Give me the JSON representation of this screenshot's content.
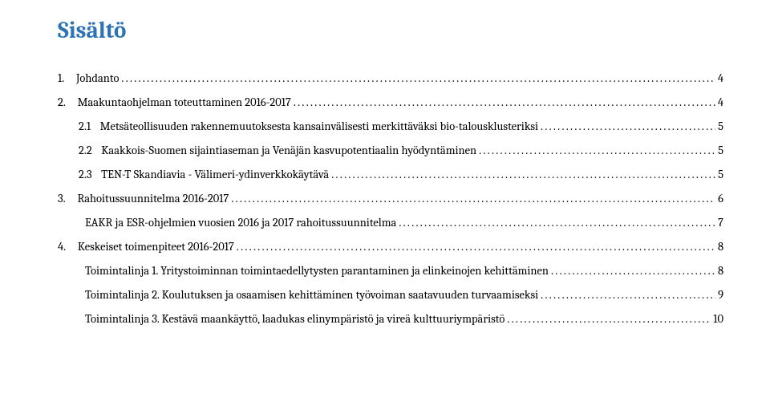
{
  "title": {
    "text": "Sisältö",
    "color": "#2e74b5",
    "fontsize": 29
  },
  "toc": [
    {
      "indent": "indent-0",
      "num": "1.",
      "numpad": "    ",
      "label": "Johdanto",
      "page": "4"
    },
    {
      "indent": "indent-0",
      "num": "2.",
      "numpad": "    ",
      "label": "Maakuntaohjelman toteuttaminen 2016-2017",
      "page": "4"
    },
    {
      "indent": "indent-1",
      "num": "2.1",
      "numpad": "   ",
      "label": "Metsäteollisuuden rakennemuutoksesta kansainvälisesti merkittäväksi bio-talousklusteriksi",
      "page": "5"
    },
    {
      "indent": "indent-1",
      "num": "2.2",
      "numpad": "   ",
      "label": "Kaakkois-Suomen sijaintiaseman ja Venäjän kasvupotentiaalin hyödyntäminen",
      "page": "5"
    },
    {
      "indent": "indent-1",
      "num": "2.3",
      "numpad": "   ",
      "label": "TEN-T Skandiavia - Välimeri-ydinverkkokäytävä",
      "page": "5"
    },
    {
      "indent": "indent-0",
      "num": "3.",
      "numpad": "    ",
      "label": "Rahoitussuunnitelma 2016-2017",
      "page": "6"
    },
    {
      "indent": "indent-1b",
      "num": "",
      "numpad": "",
      "label": "EAKR ja ESR-ohjelmien vuosien 2016 ja 2017 rahoitussuunnitelma",
      "page": "7"
    },
    {
      "indent": "indent-0",
      "num": "4.",
      "numpad": "    ",
      "label": "Keskeiset toimenpiteet 2016-2017",
      "page": "8"
    },
    {
      "indent": "indent-1b",
      "num": "",
      "numpad": "",
      "label": "Toimintalinja 1. Yritystoiminnan toimintaedellytysten parantaminen ja elinkeinojen kehittäminen",
      "page": "8"
    },
    {
      "indent": "indent-1b",
      "num": "",
      "numpad": "",
      "label": "Toimintalinja 2. Koulutuksen ja osaamisen kehittäminen työvoiman saatavuuden turvaamiseksi",
      "page": "9"
    },
    {
      "indent": "indent-1b",
      "num": "",
      "numpad": "",
      "label": "Toimintalinja 3. Kestävä maankäyttö, laadukas elinympäristö ja vireä kulttuuriympäristö",
      "page": "10"
    }
  ]
}
